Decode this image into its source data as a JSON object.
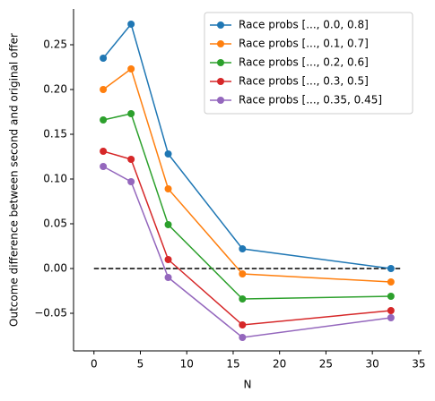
{
  "chart_data": {
    "type": "line",
    "x_label": "N",
    "y_label": "Outcome difference between second and original offer",
    "x": [
      1,
      4,
      8,
      16,
      32
    ],
    "series": [
      {
        "name": "Race probs [..., 0.0, 0.8]",
        "color": "#1f77b4",
        "values": [
          0.235,
          0.273,
          0.128,
          0.022,
          0.0
        ]
      },
      {
        "name": "Race probs [..., 0.1, 0.7]",
        "color": "#ff7f0e",
        "values": [
          0.2,
          0.223,
          0.089,
          -0.006,
          -0.015
        ]
      },
      {
        "name": "Race probs [..., 0.2, 0.6]",
        "color": "#2ca02c",
        "values": [
          0.166,
          0.173,
          0.049,
          -0.034,
          -0.031
        ]
      },
      {
        "name": "Race probs [..., 0.3, 0.5]",
        "color": "#d62728",
        "values": [
          0.131,
          0.122,
          0.01,
          -0.063,
          -0.047
        ]
      },
      {
        "name": "Race probs [..., 0.35, 0.45]",
        "color": "#9467bd",
        "values": [
          0.114,
          0.097,
          -0.01,
          -0.077,
          -0.055
        ]
      }
    ],
    "reference_line": {
      "y": 0,
      "x": [
        0,
        33
      ],
      "color": "#000000"
    },
    "xlim": [
      -2.2,
      35.3
    ],
    "ylim": [
      -0.092,
      0.29
    ],
    "xticks": [
      0,
      5,
      10,
      15,
      20,
      25,
      30,
      35
    ],
    "yticks": [
      {
        "value": -0.05,
        "label": "−0.05"
      },
      {
        "value": 0,
        "label": "0.00"
      },
      0.05,
      {
        "value": 0.1,
        "label": "0.10"
      },
      0.15,
      {
        "value": 0.2,
        "label": "0.20"
      },
      0.25
    ],
    "legend": "upper right",
    "grid": false
  }
}
